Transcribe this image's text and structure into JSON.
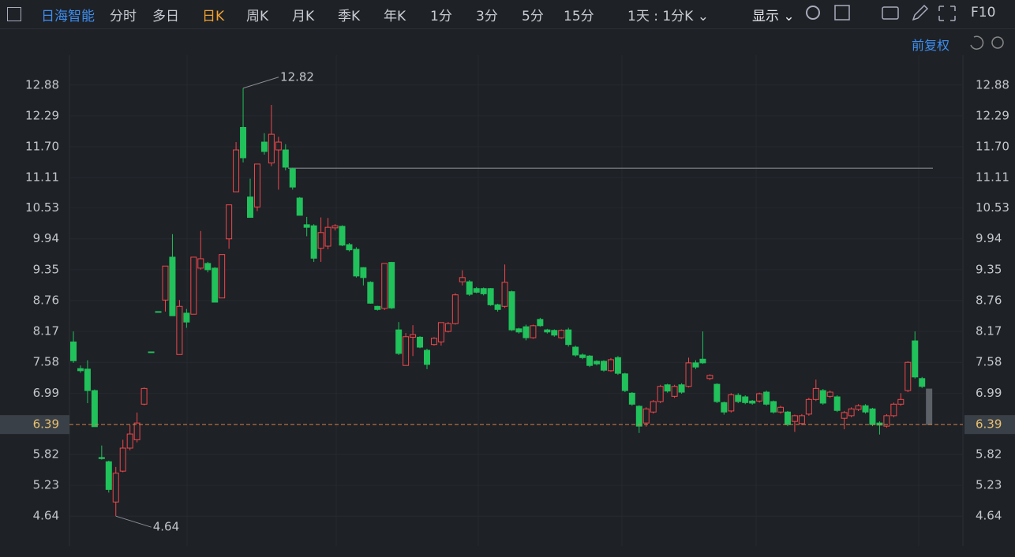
{
  "toolbar": {
    "stock": "日海智能",
    "tabs": [
      "分时",
      "多日",
      "日K",
      "周K",
      "月K",
      "季K",
      "年K",
      "1分",
      "3分",
      "5分",
      "15分"
    ],
    "active": "日K",
    "interval": "1天 : 1分K",
    "display": "显示",
    "f10": "F10"
  },
  "chart_data": {
    "type": "candlestick",
    "adjust": "前复权",
    "up_color": "#f0474b",
    "down_color": "#21c15b",
    "last_color": "#5c6168",
    "ylim": [
      4.1,
      13.45
    ],
    "yticks": [
      {
        "value": 12.88,
        "label": "12.88"
      },
      {
        "value": 12.29,
        "label": "12.29"
      },
      {
        "value": 11.7,
        "label": "11.70"
      },
      {
        "value": 11.11,
        "label": "11.11"
      },
      {
        "value": 10.53,
        "label": "10.53"
      },
      {
        "value": 9.94,
        "label": "9.94"
      },
      {
        "value": 9.35,
        "label": "9.35"
      },
      {
        "value": 8.76,
        "label": "8.76"
      },
      {
        "value": 8.17,
        "label": "8.17"
      },
      {
        "value": 7.58,
        "label": "7.58"
      },
      {
        "value": 6.99,
        "label": "6.99"
      },
      {
        "value": 5.82,
        "label": "5.82"
      },
      {
        "value": 5.23,
        "label": "5.23"
      },
      {
        "value": 4.64,
        "label": "4.64"
      }
    ],
    "grid": true,
    "current_price": {
      "value": 6.39,
      "label": "6.39"
    },
    "hline": 11.29,
    "high_label": {
      "value": 12.82,
      "label": "12.82"
    },
    "low_label": {
      "value": 4.64,
      "label": "4.64"
    },
    "ohlc": [
      [
        7.97,
        8.17,
        7.57,
        7.61
      ],
      [
        7.46,
        7.52,
        7.38,
        7.42
      ],
      [
        7.45,
        7.62,
        6.8,
        7.04
      ],
      [
        7.04,
        7.06,
        6.35,
        6.35
      ],
      [
        5.76,
        5.99,
        5.72,
        5.74
      ],
      [
        5.68,
        5.7,
        5.09,
        5.15
      ],
      [
        4.91,
        5.58,
        4.64,
        5.46
      ],
      [
        5.5,
        6.1,
        5.48,
        5.94
      ],
      [
        5.94,
        6.38,
        5.9,
        6.21
      ],
      [
        6.1,
        6.62,
        6.05,
        6.42
      ],
      [
        6.78,
        7.1,
        6.76,
        7.08
      ],
      [
        7.78,
        7.78,
        7.78,
        7.78
      ],
      [
        8.55,
        8.55,
        8.55,
        8.55
      ],
      [
        8.77,
        9.42,
        8.55,
        9.42
      ],
      [
        9.59,
        10.03,
        8.47,
        8.47
      ],
      [
        7.73,
        8.77,
        7.73,
        8.65
      ],
      [
        8.52,
        8.6,
        8.24,
        8.35
      ],
      [
        8.5,
        9.59,
        8.5,
        9.59
      ],
      [
        9.38,
        10.09,
        9.35,
        9.56
      ],
      [
        9.47,
        9.5,
        9.3,
        9.35
      ],
      [
        9.38,
        9.4,
        8.73,
        8.73
      ],
      [
        8.81,
        9.64,
        8.81,
        9.64
      ],
      [
        9.94,
        10.59,
        9.75,
        10.59
      ],
      [
        10.84,
        11.79,
        10.84,
        11.64
      ],
      [
        12.07,
        12.82,
        11.4,
        11.49
      ],
      [
        10.74,
        11.09,
        10.35,
        10.35
      ],
      [
        10.55,
        11.37,
        10.47,
        11.37
      ],
      [
        11.79,
        11.96,
        11.55,
        11.61
      ],
      [
        11.39,
        12.5,
        11.33,
        11.94
      ],
      [
        11.64,
        11.89,
        10.88,
        11.79
      ],
      [
        11.64,
        11.75,
        11.25,
        11.31
      ],
      [
        11.28,
        11.3,
        10.88,
        10.93
      ],
      [
        10.72,
        10.74,
        10.39,
        10.39
      ],
      [
        10.21,
        10.36,
        9.99,
        10.16
      ],
      [
        10.19,
        10.22,
        9.5,
        9.57
      ],
      [
        9.76,
        10.35,
        9.5,
        10.06
      ],
      [
        9.8,
        10.34,
        9.74,
        10.16
      ],
      [
        10.15,
        10.22,
        10.1,
        10.19
      ],
      [
        10.18,
        10.2,
        9.8,
        9.82
      ],
      [
        9.83,
        9.86,
        9.7,
        9.73
      ],
      [
        9.74,
        9.78,
        9.2,
        9.23
      ],
      [
        9.39,
        9.4,
        9.05,
        9.2
      ],
      [
        9.11,
        9.13,
        8.7,
        8.71
      ],
      [
        8.65,
        8.66,
        8.57,
        8.59
      ],
      [
        8.61,
        9.47,
        8.58,
        9.47
      ],
      [
        9.49,
        9.5,
        8.6,
        8.62
      ],
      [
        8.2,
        8.35,
        7.72,
        7.75
      ],
      [
        7.52,
        8.14,
        7.52,
        8.07
      ],
      [
        8.06,
        8.29,
        7.7,
        8.11
      ],
      [
        8.06,
        8.08,
        7.85,
        7.87
      ],
      [
        7.81,
        7.84,
        7.45,
        7.54
      ],
      [
        7.92,
        8.06,
        7.9,
        8.04
      ],
      [
        7.97,
        8.34,
        7.9,
        8.34
      ],
      [
        8.17,
        8.35,
        8.15,
        8.32
      ],
      [
        8.32,
        8.9,
        8.3,
        8.87
      ],
      [
        9.12,
        9.34,
        9.05,
        9.2
      ],
      [
        9.12,
        9.15,
        8.85,
        8.88
      ],
      [
        8.99,
        9.02,
        8.9,
        8.92
      ],
      [
        8.99,
        9.01,
        8.86,
        8.89
      ],
      [
        8.99,
        9.0,
        8.66,
        8.68
      ],
      [
        8.68,
        8.7,
        8.55,
        8.59
      ],
      [
        8.65,
        9.45,
        8.62,
        9.11
      ],
      [
        8.93,
        8.95,
        8.18,
        8.2
      ],
      [
        8.22,
        8.24,
        8.13,
        8.16
      ],
      [
        8.26,
        8.3,
        8.0,
        8.05
      ],
      [
        8.05,
        8.3,
        8.03,
        8.28
      ],
      [
        8.4,
        8.43,
        8.26,
        8.28
      ],
      [
        8.2,
        8.22,
        8.13,
        8.16
      ],
      [
        8.19,
        8.21,
        8.07,
        8.1
      ],
      [
        8.05,
        8.21,
        8.03,
        8.19
      ],
      [
        8.2,
        8.24,
        7.88,
        7.92
      ],
      [
        7.87,
        7.9,
        7.69,
        7.72
      ],
      [
        7.72,
        7.75,
        7.64,
        7.67
      ],
      [
        7.7,
        7.72,
        7.49,
        7.52
      ],
      [
        7.6,
        7.62,
        7.52,
        7.55
      ],
      [
        7.6,
        7.62,
        7.4,
        7.43
      ],
      [
        7.42,
        7.66,
        7.4,
        7.63
      ],
      [
        7.67,
        7.7,
        7.34,
        7.37
      ],
      [
        7.36,
        7.38,
        7.01,
        7.04
      ],
      [
        6.99,
        7.01,
        6.75,
        6.78
      ],
      [
        6.74,
        6.76,
        6.23,
        6.36
      ],
      [
        6.42,
        6.72,
        6.35,
        6.69
      ],
      [
        6.63,
        6.86,
        6.6,
        6.83
      ],
      [
        6.83,
        7.15,
        6.8,
        7.12
      ],
      [
        7.15,
        7.17,
        7.0,
        7.03
      ],
      [
        6.93,
        7.15,
        6.9,
        7.12
      ],
      [
        7.15,
        7.18,
        6.98,
        7.01
      ],
      [
        7.12,
        7.67,
        7.1,
        7.57
      ],
      [
        7.57,
        7.62,
        7.45,
        7.49
      ],
      [
        7.64,
        8.17,
        7.55,
        7.57
      ],
      [
        7.27,
        7.35,
        7.24,
        7.33
      ],
      [
        7.16,
        7.18,
        6.8,
        6.83
      ],
      [
        6.81,
        6.83,
        6.58,
        6.63
      ],
      [
        6.65,
        6.99,
        6.62,
        6.96
      ],
      [
        6.95,
        6.99,
        6.8,
        6.83
      ],
      [
        6.92,
        6.95,
        6.78,
        6.81
      ],
      [
        6.84,
        6.86,
        6.77,
        6.8
      ],
      [
        6.84,
        7.0,
        6.81,
        6.98
      ],
      [
        7.01,
        7.04,
        6.75,
        6.78
      ],
      [
        6.83,
        6.85,
        6.6,
        6.63
      ],
      [
        6.63,
        6.75,
        6.6,
        6.72
      ],
      [
        6.63,
        6.65,
        6.36,
        6.39
      ],
      [
        6.45,
        6.58,
        6.25,
        6.56
      ],
      [
        6.41,
        6.59,
        6.38,
        6.56
      ],
      [
        6.59,
        6.9,
        6.56,
        6.87
      ],
      [
        6.87,
        7.25,
        6.84,
        7.08
      ],
      [
        7.04,
        7.07,
        6.77,
        6.8
      ],
      [
        6.93,
        7.04,
        6.9,
        7.01
      ],
      [
        6.92,
        6.95,
        6.63,
        6.66
      ],
      [
        6.51,
        6.65,
        6.3,
        6.62
      ],
      [
        6.56,
        6.72,
        6.53,
        6.69
      ],
      [
        6.68,
        6.78,
        6.65,
        6.75
      ],
      [
        6.75,
        6.78,
        6.6,
        6.63
      ],
      [
        6.69,
        6.71,
        6.36,
        6.39
      ],
      [
        6.42,
        6.45,
        6.2,
        6.38
      ],
      [
        6.36,
        6.59,
        6.33,
        6.56
      ],
      [
        6.56,
        6.81,
        6.53,
        6.78
      ],
      [
        6.78,
        6.99,
        6.75,
        6.87
      ],
      [
        7.04,
        7.6,
        7.01,
        7.58
      ],
      [
        7.99,
        8.17,
        7.27,
        7.3
      ],
      [
        7.27,
        7.3,
        7.09,
        7.12
      ],
      [
        7.07,
        7.07,
        6.39,
        6.39
      ]
    ]
  }
}
